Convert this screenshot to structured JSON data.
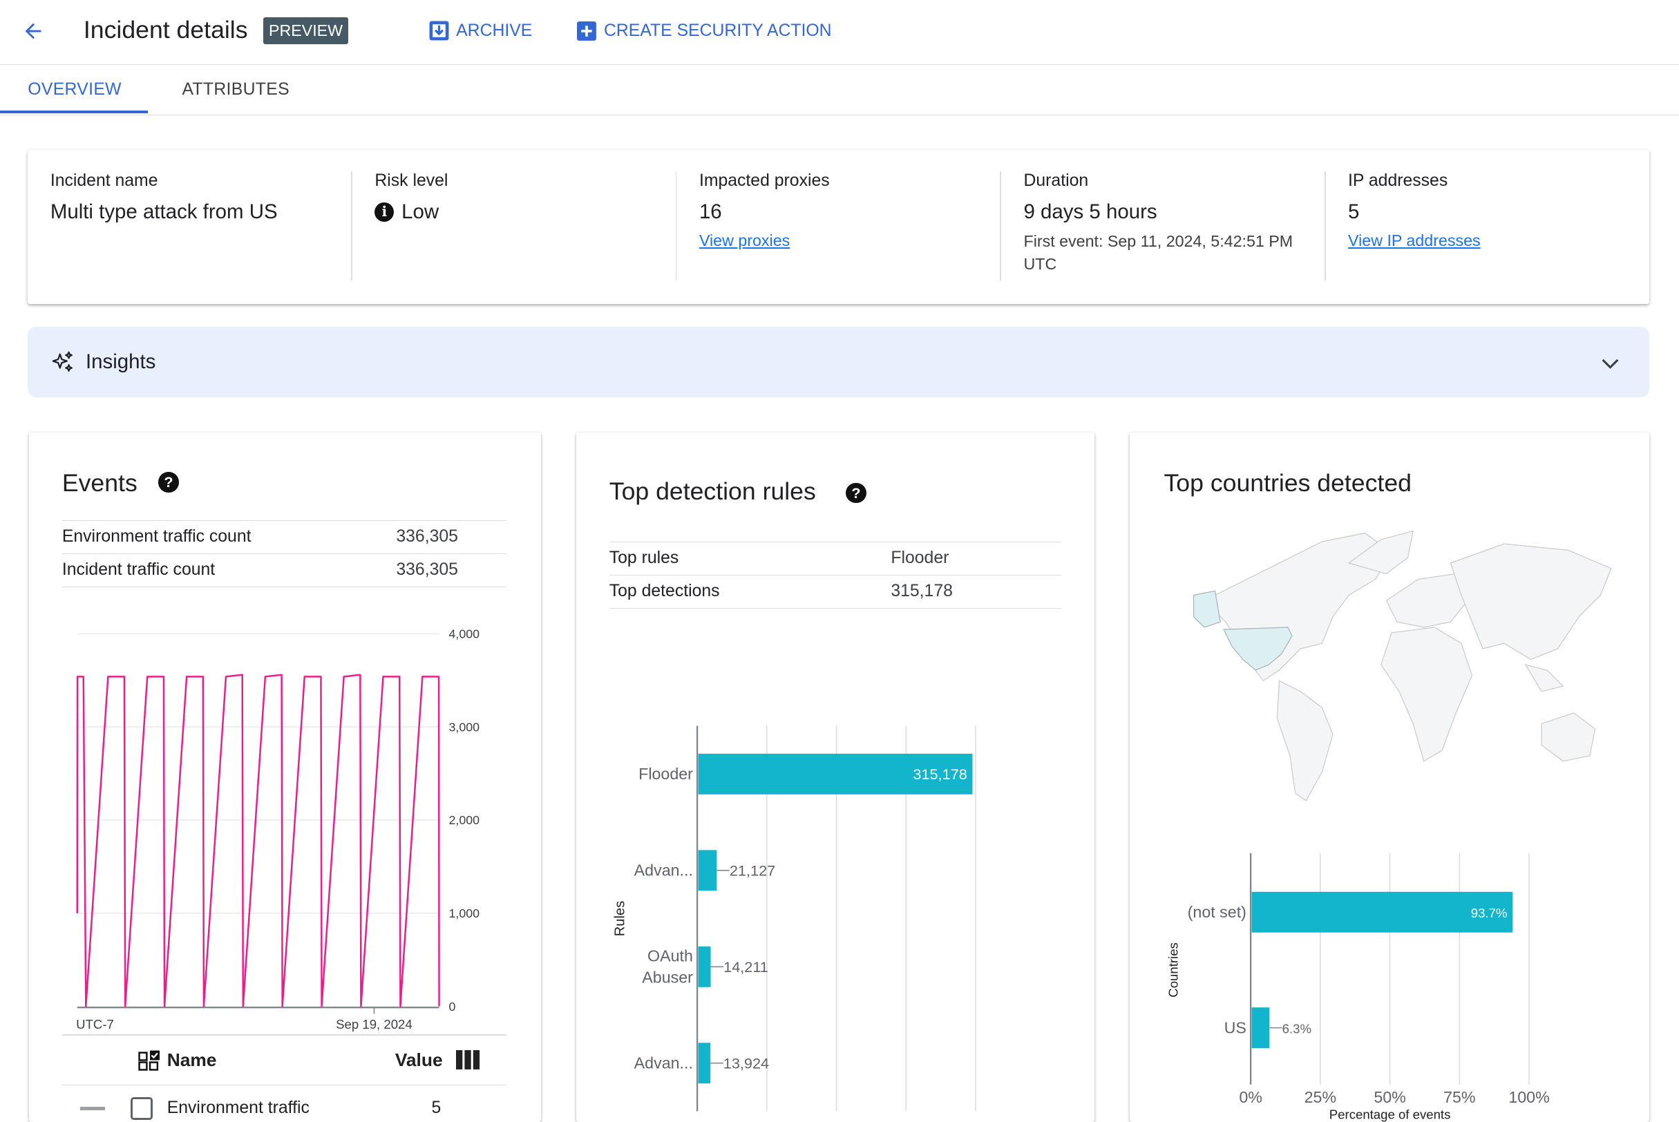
{
  "header": {
    "title": "Incident details",
    "badge": "PREVIEW",
    "archive_label": "ARCHIVE",
    "create_action_label": "CREATE SECURITY ACTION",
    "accent_color": "#3367d6"
  },
  "tabs": [
    {
      "label": "OVERVIEW",
      "active": true
    },
    {
      "label": "ATTRIBUTES",
      "active": false
    }
  ],
  "summary": {
    "incident_name": {
      "label": "Incident name",
      "value": "Multi type attack from US"
    },
    "risk_level": {
      "label": "Risk level",
      "value": "Low",
      "icon": "info-icon"
    },
    "impacted_proxies": {
      "label": "Impacted proxies",
      "value": "16",
      "link": "View proxies"
    },
    "duration": {
      "label": "Duration",
      "value": "9 days 5 hours",
      "detail": "First event: Sep 11, 2024, 5:42:51 PM UTC"
    },
    "ip_addresses": {
      "label": "IP addresses",
      "value": "5",
      "link": "View IP addresses"
    }
  },
  "insights": {
    "label": "Insights",
    "icon": "sparkle-icon",
    "expanded": false
  },
  "events": {
    "title": "Events",
    "rows": [
      {
        "label": "Environment traffic count",
        "value": "336,305"
      },
      {
        "label": "Incident traffic count",
        "value": "336,305"
      }
    ],
    "legend_table": {
      "name_header": "Name",
      "value_header": "Value",
      "rows": [
        {
          "name": "Environment traffic",
          "value": "5"
        }
      ]
    }
  },
  "detection": {
    "title": "Top detection rules",
    "rows": [
      {
        "label": "Top rules",
        "value": "Flooder"
      },
      {
        "label": "Top detections",
        "value": "315,178"
      }
    ]
  },
  "countries": {
    "title": "Top countries detected",
    "highlighted_country": "US",
    "map_base_color": "#f1f3f4",
    "map_highlight_color": "#dcefF2"
  },
  "chart_data": [
    {
      "type": "line",
      "timezone_label": "UTC-7",
      "x_tick_labels": [
        "Sep 19, 2024"
      ],
      "y_ticks": [
        "4,000",
        "3,000",
        "2,000",
        "1,000",
        "0"
      ],
      "ylim": [
        0,
        4000
      ],
      "grid": true,
      "color": "#e91e8c",
      "points": [
        [
          "2024-09-11T10:42",
          1000
        ],
        [
          "2024-09-11T10:50",
          3540
        ],
        [
          "2024-09-11T14:30",
          3540
        ],
        [
          "2024-09-11T16:00",
          0
        ],
        [
          "2024-09-12T05:30",
          3540
        ],
        [
          "2024-09-12T15:30",
          3540
        ],
        [
          "2024-09-12T16:00",
          0
        ],
        [
          "2024-09-13T05:30",
          3540
        ],
        [
          "2024-09-13T15:30",
          3540
        ],
        [
          "2024-09-13T16:00",
          0
        ],
        [
          "2024-09-14T05:30",
          3540
        ],
        [
          "2024-09-14T15:30",
          3540
        ],
        [
          "2024-09-14T16:00",
          0
        ],
        [
          "2024-09-15T05:30",
          3540
        ],
        [
          "2024-09-15T15:30",
          3560
        ],
        [
          "2024-09-15T16:00",
          0
        ],
        [
          "2024-09-16T05:30",
          3540
        ],
        [
          "2024-09-16T15:30",
          3560
        ],
        [
          "2024-09-16T16:00",
          0
        ],
        [
          "2024-09-17T05:30",
          3540
        ],
        [
          "2024-09-17T15:30",
          3540
        ],
        [
          "2024-09-17T16:00",
          0
        ],
        [
          "2024-09-18T05:30",
          3540
        ],
        [
          "2024-09-18T15:30",
          3560
        ],
        [
          "2024-09-18T16:00",
          0
        ],
        [
          "2024-09-19T05:30",
          3540
        ],
        [
          "2024-09-19T15:30",
          3540
        ],
        [
          "2024-09-19T16:00",
          0
        ],
        [
          "2024-09-20T05:30",
          3540
        ],
        [
          "2024-09-20T15:30",
          3540
        ],
        [
          "2024-09-20T15:42",
          0
        ]
      ]
    },
    {
      "type": "bar",
      "orientation": "horizontal",
      "ylabel": "Rules",
      "categories": [
        "Flooder",
        "Advan...",
        "OAuth Abuser",
        "Advan..."
      ],
      "values": [
        315178,
        21127,
        14211,
        13924
      ],
      "value_labels": [
        "315,178",
        "21,127",
        "14,211",
        "13,924"
      ],
      "xlim": [
        0,
        400000
      ],
      "grid": true,
      "color": "#12b5cb"
    },
    {
      "type": "bar",
      "orientation": "horizontal",
      "ylabel": "Countries",
      "xlabel": "Percentage of events",
      "categories": [
        "(not set)",
        "US"
      ],
      "values": [
        93.7,
        6.3
      ],
      "value_labels": [
        "93.7%",
        "6.3%"
      ],
      "x_ticks": [
        "0%",
        "25%",
        "50%",
        "75%",
        "100%"
      ],
      "xlim": [
        0,
        100
      ],
      "grid": true,
      "color": "#12b5cb"
    }
  ]
}
